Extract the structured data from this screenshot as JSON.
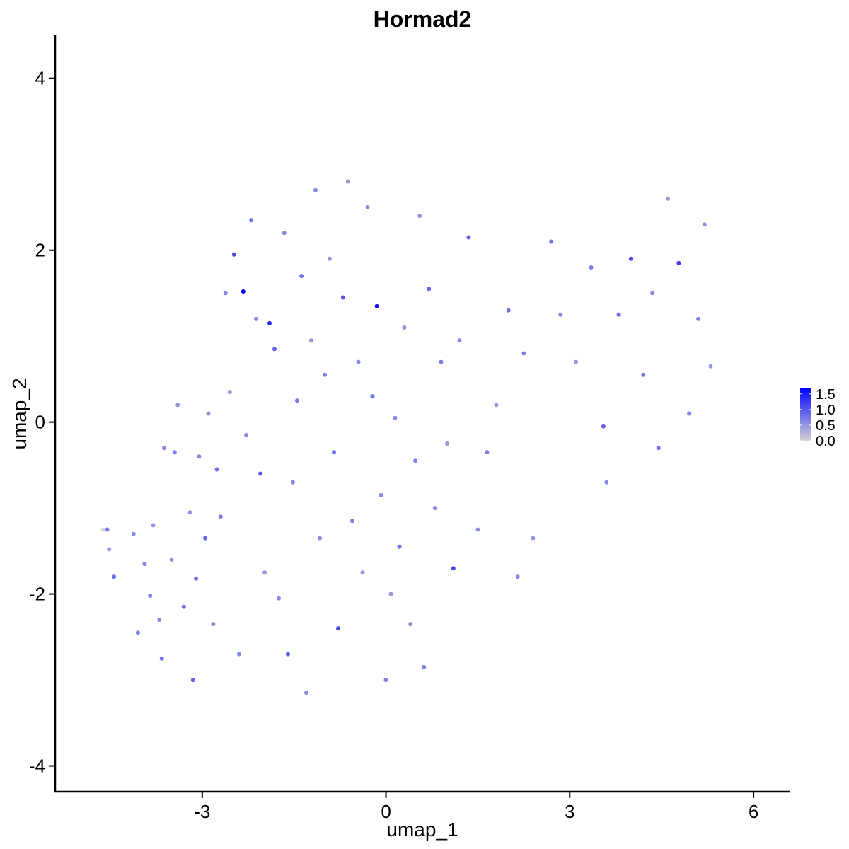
{
  "chart_data": {
    "type": "scatter",
    "title": "Hormad2",
    "xlabel": "umap_1",
    "ylabel": "umap_2",
    "xlim": [
      -5.4,
      6.6
    ],
    "ylim": [
      -4.3,
      4.5
    ],
    "x_ticks": [
      -3,
      0,
      3,
      6
    ],
    "x_tick_labels": [
      "-3",
      "0",
      "3",
      "6"
    ],
    "y_ticks": [
      -4,
      -2,
      0,
      2,
      4
    ],
    "y_tick_labels": [
      "-4",
      "-2",
      "0",
      "2",
      "4"
    ],
    "grid": false,
    "legend": {
      "placement": "right",
      "type": "color-gradient",
      "title": "",
      "breaks": [
        0.0,
        0.5,
        1.0,
        1.5
      ],
      "labels": [
        "0.0",
        "0.5",
        "1.0",
        "1.5"
      ],
      "min": 0,
      "max": 1.7
    },
    "color_scale": {
      "low": "#D3D3D3",
      "high": "#0000FF"
    },
    "series": [
      {
        "values": [
          {
            "x": -4.62,
            "y": -1.25,
            "v": 0.0
          },
          {
            "x": -4.55,
            "y": -1.25,
            "v": 0.7
          },
          {
            "x": -4.52,
            "y": -1.48,
            "v": 0.5
          },
          {
            "x": -4.44,
            "y": -1.8,
            "v": 0.8
          },
          {
            "x": -4.12,
            "y": -1.3,
            "v": 0.6
          },
          {
            "x": -4.05,
            "y": -2.45,
            "v": 0.7
          },
          {
            "x": -3.94,
            "y": -1.65,
            "v": 0.6
          },
          {
            "x": -3.85,
            "y": -2.02,
            "v": 0.7
          },
          {
            "x": -3.8,
            "y": -1.2,
            "v": 0.5
          },
          {
            "x": -3.7,
            "y": -2.3,
            "v": 0.6
          },
          {
            "x": -3.66,
            "y": -2.75,
            "v": 0.8
          },
          {
            "x": -3.62,
            "y": -0.3,
            "v": 0.6
          },
          {
            "x": -3.5,
            "y": -1.6,
            "v": 0.5
          },
          {
            "x": -3.45,
            "y": -0.35,
            "v": 0.7
          },
          {
            "x": -3.4,
            "y": 0.2,
            "v": 0.5
          },
          {
            "x": -3.3,
            "y": -2.15,
            "v": 0.8
          },
          {
            "x": -3.2,
            "y": -1.05,
            "v": 0.5
          },
          {
            "x": -3.15,
            "y": -3.0,
            "v": 0.9
          },
          {
            "x": -3.1,
            "y": -1.82,
            "v": 0.8
          },
          {
            "x": -3.05,
            "y": -0.4,
            "v": 0.6
          },
          {
            "x": -2.95,
            "y": -1.35,
            "v": 0.9
          },
          {
            "x": -2.9,
            "y": 0.1,
            "v": 0.5
          },
          {
            "x": -2.82,
            "y": -2.35,
            "v": 0.6
          },
          {
            "x": -2.76,
            "y": -0.55,
            "v": 0.8
          },
          {
            "x": -2.7,
            "y": -1.1,
            "v": 0.7
          },
          {
            "x": -2.62,
            "y": 1.5,
            "v": 0.6
          },
          {
            "x": -2.55,
            "y": 0.35,
            "v": 0.5
          },
          {
            "x": -2.48,
            "y": 1.95,
            "v": 1.1
          },
          {
            "x": -2.4,
            "y": -2.7,
            "v": 0.6
          },
          {
            "x": -2.33,
            "y": 1.52,
            "v": 1.7
          },
          {
            "x": -2.28,
            "y": -0.15,
            "v": 0.6
          },
          {
            "x": -2.2,
            "y": 2.35,
            "v": 0.8
          },
          {
            "x": -2.12,
            "y": 1.2,
            "v": 0.6
          },
          {
            "x": -2.05,
            "y": -0.6,
            "v": 1.0
          },
          {
            "x": -1.98,
            "y": -1.75,
            "v": 0.5
          },
          {
            "x": -1.9,
            "y": 1.15,
            "v": 1.4
          },
          {
            "x": -1.82,
            "y": 0.85,
            "v": 0.9
          },
          {
            "x": -1.75,
            "y": -2.05,
            "v": 0.6
          },
          {
            "x": -1.66,
            "y": 2.2,
            "v": 0.6
          },
          {
            "x": -1.6,
            "y": -2.7,
            "v": 1.0
          },
          {
            "x": -1.52,
            "y": -0.7,
            "v": 0.6
          },
          {
            "x": -1.45,
            "y": 0.25,
            "v": 0.7
          },
          {
            "x": -1.38,
            "y": 1.7,
            "v": 0.8
          },
          {
            "x": -1.3,
            "y": -3.15,
            "v": 0.6
          },
          {
            "x": -1.22,
            "y": 0.95,
            "v": 0.5
          },
          {
            "x": -1.15,
            "y": 2.7,
            "v": 0.6
          },
          {
            "x": -1.08,
            "y": -1.35,
            "v": 0.6
          },
          {
            "x": -1.0,
            "y": 0.55,
            "v": 0.7
          },
          {
            "x": -0.92,
            "y": 1.9,
            "v": 0.5
          },
          {
            "x": -0.85,
            "y": -0.35,
            "v": 0.8
          },
          {
            "x": -0.78,
            "y": -2.4,
            "v": 1.1
          },
          {
            "x": -0.7,
            "y": 1.45,
            "v": 1.0
          },
          {
            "x": -0.62,
            "y": 2.8,
            "v": 0.5
          },
          {
            "x": -0.55,
            "y": -1.15,
            "v": 0.7
          },
          {
            "x": -0.45,
            "y": 0.7,
            "v": 0.6
          },
          {
            "x": -0.38,
            "y": -1.75,
            "v": 0.5
          },
          {
            "x": -0.3,
            "y": 2.5,
            "v": 0.6
          },
          {
            "x": -0.22,
            "y": 0.3,
            "v": 0.8
          },
          {
            "x": -0.15,
            "y": 1.35,
            "v": 1.5
          },
          {
            "x": -0.08,
            "y": -0.85,
            "v": 0.6
          },
          {
            "x": 0.0,
            "y": -3.0,
            "v": 0.7
          },
          {
            "x": 0.08,
            "y": -2.0,
            "v": 0.5
          },
          {
            "x": 0.15,
            "y": 0.05,
            "v": 0.6
          },
          {
            "x": 0.22,
            "y": -1.45,
            "v": 0.8
          },
          {
            "x": 0.3,
            "y": 1.1,
            "v": 0.5
          },
          {
            "x": 0.4,
            "y": -2.35,
            "v": 0.6
          },
          {
            "x": 0.48,
            "y": -0.45,
            "v": 0.7
          },
          {
            "x": 0.55,
            "y": 2.4,
            "v": 0.5
          },
          {
            "x": 0.62,
            "y": -2.85,
            "v": 0.7
          },
          {
            "x": 0.7,
            "y": 1.55,
            "v": 0.9
          },
          {
            "x": 0.8,
            "y": -1.0,
            "v": 0.6
          },
          {
            "x": 0.9,
            "y": 0.7,
            "v": 0.7
          },
          {
            "x": 1.0,
            "y": -0.25,
            "v": 0.5
          },
          {
            "x": 1.1,
            "y": -1.7,
            "v": 1.1
          },
          {
            "x": 1.2,
            "y": 0.95,
            "v": 0.6
          },
          {
            "x": 1.35,
            "y": 2.15,
            "v": 0.9
          },
          {
            "x": 1.5,
            "y": -1.25,
            "v": 0.6
          },
          {
            "x": 1.65,
            "y": -0.35,
            "v": 0.7
          },
          {
            "x": 1.8,
            "y": 0.2,
            "v": 0.5
          },
          {
            "x": 2.0,
            "y": 1.3,
            "v": 0.8
          },
          {
            "x": 2.15,
            "y": -1.8,
            "v": 0.6
          },
          {
            "x": 2.25,
            "y": 0.8,
            "v": 0.7
          },
          {
            "x": 2.4,
            "y": -1.35,
            "v": 0.5
          },
          {
            "x": 2.7,
            "y": 2.1,
            "v": 0.8
          },
          {
            "x": 2.85,
            "y": 1.25,
            "v": 0.6
          },
          {
            "x": 3.1,
            "y": 0.7,
            "v": 0.5
          },
          {
            "x": 3.35,
            "y": 1.8,
            "v": 0.7
          },
          {
            "x": 3.55,
            "y": -0.05,
            "v": 0.9
          },
          {
            "x": 3.6,
            "y": -0.7,
            "v": 0.6
          },
          {
            "x": 3.8,
            "y": 1.25,
            "v": 0.8
          },
          {
            "x": 4.0,
            "y": 1.9,
            "v": 1.1
          },
          {
            "x": 4.2,
            "y": 0.55,
            "v": 0.7
          },
          {
            "x": 4.35,
            "y": 1.5,
            "v": 0.6
          },
          {
            "x": 4.45,
            "y": -0.3,
            "v": 0.8
          },
          {
            "x": 4.6,
            "y": 2.6,
            "v": 0.5
          },
          {
            "x": 4.78,
            "y": 1.85,
            "v": 1.2
          },
          {
            "x": 4.95,
            "y": 0.1,
            "v": 0.6
          },
          {
            "x": 5.1,
            "y": 1.2,
            "v": 0.7
          },
          {
            "x": 5.2,
            "y": 2.3,
            "v": 0.6
          },
          {
            "x": 5.3,
            "y": 0.65,
            "v": 0.5
          }
        ]
      }
    ]
  }
}
